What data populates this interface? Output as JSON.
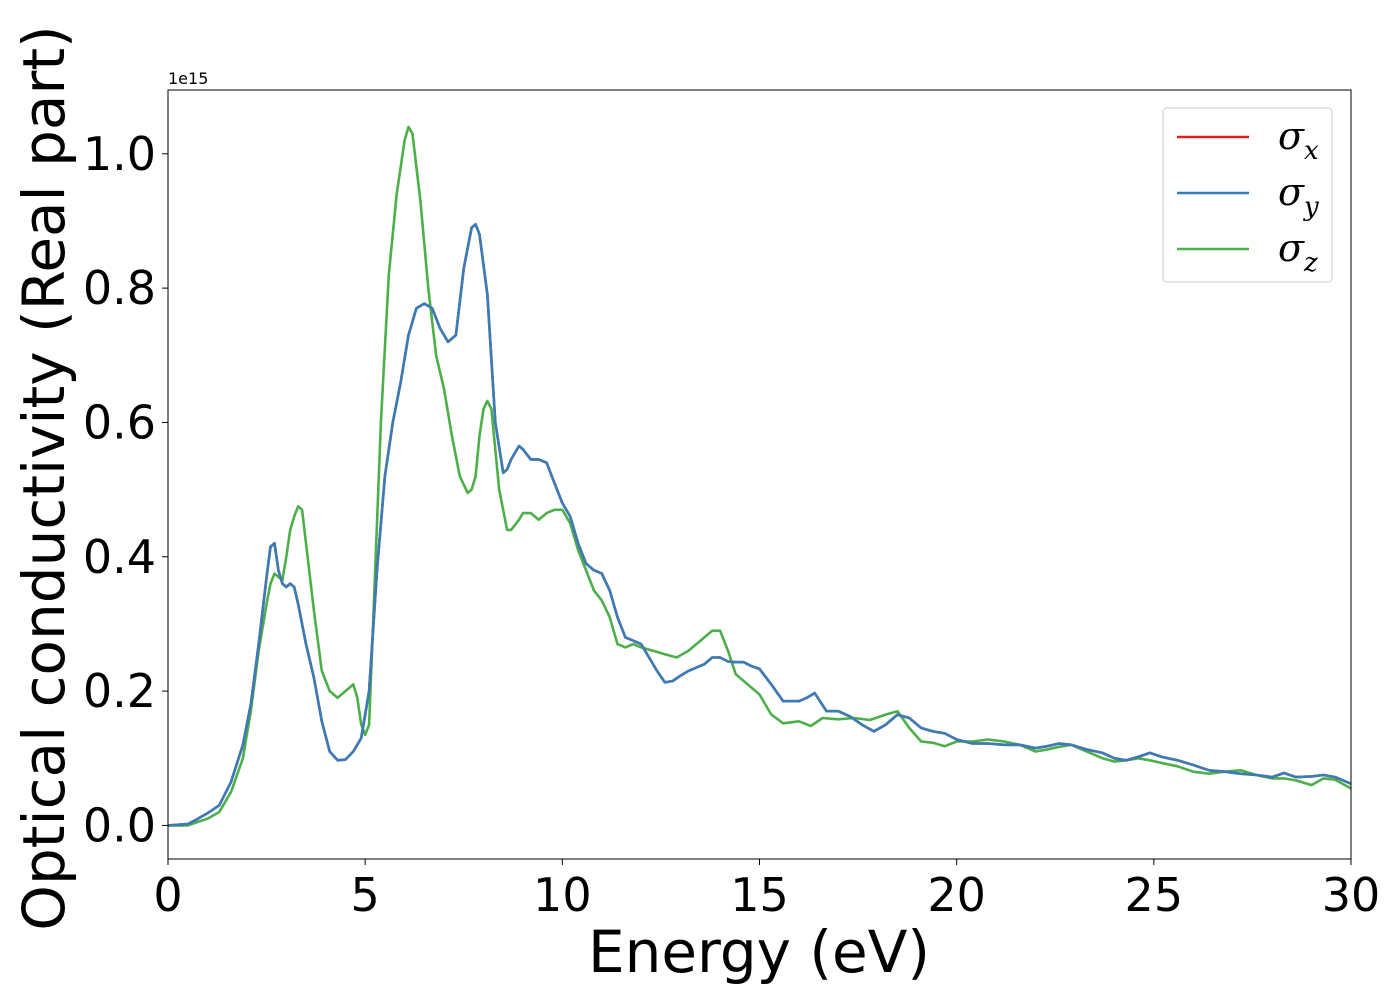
{
  "chart_data": {
    "type": "line",
    "xlabel": "Energy (eV)",
    "ylabel": "Optical conductivity (Real part)",
    "y_offset_text": "1e15",
    "xlim": [
      0,
      30
    ],
    "ylim": [
      -0.05,
      1.095
    ],
    "y_scale_note": "values in units of 1e15",
    "xticks": [
      0,
      5,
      10,
      15,
      20,
      25,
      30
    ],
    "xtick_labels": [
      "0",
      "5",
      "10",
      "15",
      "20",
      "25",
      "30"
    ],
    "yticks": [
      0.0,
      0.2,
      0.4,
      0.6,
      0.8,
      1.0
    ],
    "ytick_labels": [
      "0.0",
      "0.2",
      "0.4",
      "0.6",
      "0.8",
      "1.0"
    ],
    "grid": false,
    "legend_position": "top-right",
    "series": [
      {
        "name": "σx",
        "base": "σ",
        "sub": "x",
        "color": "#e41a1c",
        "x": [
          0,
          0.5,
          0.7,
          1.0,
          1.3,
          1.6,
          1.9,
          2.1,
          2.3,
          2.5,
          2.6,
          2.7,
          2.8,
          2.9,
          3.0,
          3.1,
          3.2,
          3.3,
          3.5,
          3.7,
          3.9,
          4.1,
          4.3,
          4.5,
          4.7,
          4.9,
          5.1,
          5.3,
          5.5,
          5.7,
          5.9,
          6.1,
          6.3,
          6.5,
          6.7,
          6.9,
          7.1,
          7.3,
          7.5,
          7.7,
          7.8,
          7.9,
          8.1,
          8.3,
          8.5,
          8.6,
          8.7,
          8.9,
          9.0,
          9.2,
          9.4,
          9.6,
          9.8,
          10.0,
          10.2,
          10.4,
          10.6,
          10.8,
          11.0,
          11.2,
          11.4,
          11.6,
          11.8,
          12.0,
          12.2,
          12.4,
          12.6,
          12.8,
          13.0,
          13.2,
          13.4,
          13.6,
          13.8,
          14.0,
          14.2,
          14.4,
          14.6,
          14.8,
          15.0,
          15.3,
          15.6,
          16.0,
          16.2,
          16.4,
          16.7,
          17.0,
          17.3,
          17.6,
          17.9,
          18.2,
          18.5,
          18.8,
          19.1,
          19.4,
          19.7,
          20.0,
          20.4,
          20.8,
          21.2,
          21.6,
          22.0,
          22.3,
          22.6,
          22.9,
          23.3,
          23.7,
          24.0,
          24.3,
          24.6,
          24.9,
          25.2,
          25.6,
          26.0,
          26.4,
          26.8,
          27.2,
          27.6,
          28.0,
          28.3,
          28.6,
          29.0,
          29.3,
          29.6,
          30.0
        ],
        "y": [
          0.0,
          0.002,
          0.008,
          0.018,
          0.03,
          0.065,
          0.12,
          0.18,
          0.27,
          0.37,
          0.415,
          0.42,
          0.38,
          0.36,
          0.355,
          0.36,
          0.355,
          0.33,
          0.27,
          0.22,
          0.155,
          0.11,
          0.097,
          0.098,
          0.11,
          0.13,
          0.2,
          0.38,
          0.52,
          0.6,
          0.66,
          0.73,
          0.77,
          0.777,
          0.77,
          0.74,
          0.72,
          0.73,
          0.83,
          0.89,
          0.895,
          0.88,
          0.79,
          0.6,
          0.525,
          0.53,
          0.545,
          0.565,
          0.56,
          0.545,
          0.545,
          0.54,
          0.51,
          0.48,
          0.46,
          0.42,
          0.39,
          0.38,
          0.375,
          0.35,
          0.31,
          0.28,
          0.275,
          0.27,
          0.25,
          0.23,
          0.213,
          0.215,
          0.223,
          0.23,
          0.235,
          0.24,
          0.25,
          0.25,
          0.244,
          0.243,
          0.243,
          0.237,
          0.233,
          0.21,
          0.185,
          0.185,
          0.19,
          0.197,
          0.17,
          0.17,
          0.162,
          0.15,
          0.14,
          0.15,
          0.165,
          0.16,
          0.145,
          0.14,
          0.137,
          0.128,
          0.122,
          0.122,
          0.12,
          0.12,
          0.115,
          0.118,
          0.122,
          0.12,
          0.113,
          0.108,
          0.1,
          0.097,
          0.102,
          0.108,
          0.102,
          0.097,
          0.09,
          0.082,
          0.08,
          0.077,
          0.075,
          0.072,
          0.078,
          0.072,
          0.073,
          0.075,
          0.072,
          0.062
        ]
      },
      {
        "name": "σy",
        "base": "σ",
        "sub": "y",
        "color": "#377eb8",
        "x": [
          0,
          0.5,
          0.7,
          1.0,
          1.3,
          1.6,
          1.9,
          2.1,
          2.3,
          2.5,
          2.6,
          2.7,
          2.8,
          2.9,
          3.0,
          3.1,
          3.2,
          3.3,
          3.5,
          3.7,
          3.9,
          4.1,
          4.3,
          4.5,
          4.7,
          4.9,
          5.1,
          5.3,
          5.5,
          5.7,
          5.9,
          6.1,
          6.3,
          6.5,
          6.7,
          6.9,
          7.1,
          7.3,
          7.5,
          7.7,
          7.8,
          7.9,
          8.1,
          8.3,
          8.5,
          8.6,
          8.7,
          8.9,
          9.0,
          9.2,
          9.4,
          9.6,
          9.8,
          10.0,
          10.2,
          10.4,
          10.6,
          10.8,
          11.0,
          11.2,
          11.4,
          11.6,
          11.8,
          12.0,
          12.2,
          12.4,
          12.6,
          12.8,
          13.0,
          13.2,
          13.4,
          13.6,
          13.8,
          14.0,
          14.2,
          14.4,
          14.6,
          14.8,
          15.0,
          15.3,
          15.6,
          16.0,
          16.2,
          16.4,
          16.7,
          17.0,
          17.3,
          17.6,
          17.9,
          18.2,
          18.5,
          18.8,
          19.1,
          19.4,
          19.7,
          20.0,
          20.4,
          20.8,
          21.2,
          21.6,
          22.0,
          22.3,
          22.6,
          22.9,
          23.3,
          23.7,
          24.0,
          24.3,
          24.6,
          24.9,
          25.2,
          25.6,
          26.0,
          26.4,
          26.8,
          27.2,
          27.6,
          28.0,
          28.3,
          28.6,
          29.0,
          29.3,
          29.6,
          30.0
        ],
        "y": [
          0.0,
          0.002,
          0.008,
          0.018,
          0.03,
          0.065,
          0.12,
          0.18,
          0.27,
          0.37,
          0.415,
          0.42,
          0.38,
          0.36,
          0.355,
          0.36,
          0.355,
          0.33,
          0.27,
          0.22,
          0.155,
          0.11,
          0.097,
          0.098,
          0.11,
          0.13,
          0.2,
          0.38,
          0.52,
          0.6,
          0.66,
          0.73,
          0.77,
          0.777,
          0.77,
          0.74,
          0.72,
          0.73,
          0.83,
          0.89,
          0.895,
          0.88,
          0.79,
          0.6,
          0.525,
          0.53,
          0.545,
          0.565,
          0.56,
          0.545,
          0.545,
          0.54,
          0.51,
          0.48,
          0.46,
          0.42,
          0.39,
          0.38,
          0.375,
          0.35,
          0.31,
          0.28,
          0.275,
          0.27,
          0.25,
          0.23,
          0.213,
          0.215,
          0.223,
          0.23,
          0.235,
          0.24,
          0.25,
          0.25,
          0.244,
          0.243,
          0.243,
          0.237,
          0.233,
          0.21,
          0.185,
          0.185,
          0.19,
          0.197,
          0.17,
          0.17,
          0.162,
          0.15,
          0.14,
          0.15,
          0.165,
          0.16,
          0.145,
          0.14,
          0.137,
          0.128,
          0.122,
          0.122,
          0.12,
          0.12,
          0.115,
          0.118,
          0.122,
          0.12,
          0.113,
          0.108,
          0.1,
          0.097,
          0.102,
          0.108,
          0.102,
          0.097,
          0.09,
          0.082,
          0.08,
          0.077,
          0.075,
          0.072,
          0.078,
          0.072,
          0.073,
          0.075,
          0.072,
          0.062
        ]
      },
      {
        "name": "σz",
        "base": "σ",
        "sub": "z",
        "color": "#4daf4a",
        "x": [
          0,
          0.5,
          1.0,
          1.3,
          1.6,
          1.9,
          2.1,
          2.3,
          2.5,
          2.6,
          2.7,
          2.8,
          2.9,
          3.0,
          3.1,
          3.2,
          3.3,
          3.4,
          3.5,
          3.7,
          3.9,
          4.1,
          4.3,
          4.5,
          4.7,
          4.8,
          4.9,
          5.0,
          5.1,
          5.2,
          5.4,
          5.6,
          5.8,
          6.0,
          6.1,
          6.2,
          6.3,
          6.4,
          6.6,
          6.8,
          7.0,
          7.2,
          7.4,
          7.6,
          7.7,
          7.8,
          7.9,
          8.0,
          8.1,
          8.2,
          8.4,
          8.6,
          8.7,
          8.9,
          9.0,
          9.2,
          9.4,
          9.6,
          9.8,
          10.0,
          10.2,
          10.4,
          10.6,
          10.8,
          11.0,
          11.2,
          11.4,
          11.6,
          11.8,
          12.0,
          12.3,
          12.6,
          12.9,
          13.2,
          13.5,
          13.8,
          14.0,
          14.2,
          14.4,
          14.6,
          14.8,
          15.0,
          15.3,
          15.6,
          16.0,
          16.3,
          16.6,
          17.0,
          17.4,
          17.8,
          18.2,
          18.5,
          18.8,
          19.1,
          19.4,
          19.7,
          20.0,
          20.4,
          20.8,
          21.2,
          21.6,
          22.0,
          22.3,
          22.6,
          22.9,
          23.3,
          23.7,
          24.0,
          24.3,
          24.6,
          24.9,
          25.2,
          25.6,
          26.0,
          26.4,
          26.8,
          27.2,
          27.6,
          28.0,
          28.3,
          28.6,
          29.0,
          29.3,
          29.6,
          30.0
        ],
        "y": [
          0.0,
          0.0,
          0.01,
          0.02,
          0.05,
          0.1,
          0.17,
          0.26,
          0.33,
          0.36,
          0.375,
          0.37,
          0.365,
          0.4,
          0.44,
          0.46,
          0.475,
          0.47,
          0.42,
          0.32,
          0.23,
          0.2,
          0.19,
          0.2,
          0.21,
          0.19,
          0.15,
          0.135,
          0.15,
          0.3,
          0.6,
          0.82,
          0.94,
          1.02,
          1.04,
          1.03,
          0.98,
          0.93,
          0.8,
          0.7,
          0.65,
          0.58,
          0.52,
          0.495,
          0.5,
          0.52,
          0.58,
          0.62,
          0.632,
          0.62,
          0.5,
          0.44,
          0.44,
          0.455,
          0.465,
          0.465,
          0.455,
          0.465,
          0.47,
          0.47,
          0.45,
          0.41,
          0.38,
          0.35,
          0.335,
          0.31,
          0.27,
          0.265,
          0.27,
          0.265,
          0.26,
          0.255,
          0.25,
          0.26,
          0.275,
          0.29,
          0.29,
          0.26,
          0.225,
          0.215,
          0.205,
          0.195,
          0.165,
          0.152,
          0.155,
          0.148,
          0.16,
          0.158,
          0.16,
          0.157,
          0.165,
          0.17,
          0.145,
          0.125,
          0.123,
          0.118,
          0.125,
          0.125,
          0.128,
          0.125,
          0.12,
          0.11,
          0.113,
          0.117,
          0.12,
          0.11,
          0.1,
          0.095,
          0.097,
          0.1,
          0.097,
          0.093,
          0.088,
          0.08,
          0.077,
          0.08,
          0.082,
          0.075,
          0.07,
          0.07,
          0.067,
          0.06,
          0.07,
          0.068,
          0.055
        ]
      }
    ]
  }
}
